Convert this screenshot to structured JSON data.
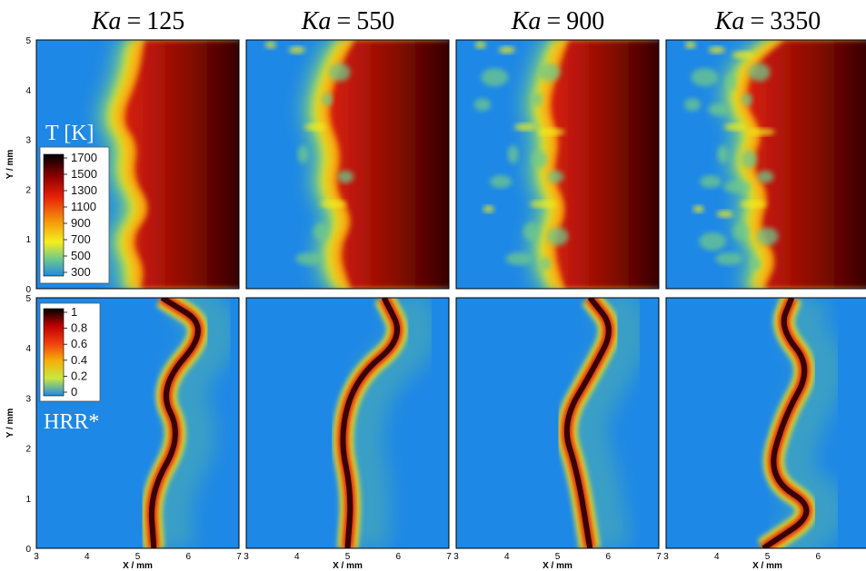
{
  "figure": {
    "columns": [
      {
        "ka_symbol": "Ka",
        "relation": "=",
        "value": "125"
      },
      {
        "ka_symbol": "Ka",
        "relation": "=",
        "value": "550"
      },
      {
        "ka_symbol": "Ka",
        "relation": "=",
        "value": "900"
      },
      {
        "ka_symbol": "Ka",
        "relation": "=",
        "value": "3350"
      }
    ],
    "x_axis": {
      "label": "X / mm",
      "ticks": [
        "3",
        "4",
        "5",
        "6",
        "7"
      ]
    },
    "y_axis": {
      "label": "Y / mm",
      "ticks": [
        "0",
        "1",
        "2",
        "3",
        "4",
        "5"
      ]
    },
    "rows": [
      {
        "field_label": "T [K]",
        "colorbar_ticks": [
          "1700",
          "1500",
          "1300",
          "1100",
          "900",
          "700",
          "500",
          "300"
        ]
      },
      {
        "field_label": "HRR*",
        "colorbar_ticks": [
          "1",
          "0.8",
          "0.6",
          "0.4",
          "0.2",
          "0"
        ]
      }
    ],
    "colors": {
      "cold": "#1e88e6",
      "green": "#6fc98a",
      "yellow": "#f5ee1e",
      "orange": "#f5960a",
      "red": "#d92010",
      "dark": "#3a0000"
    }
  }
}
